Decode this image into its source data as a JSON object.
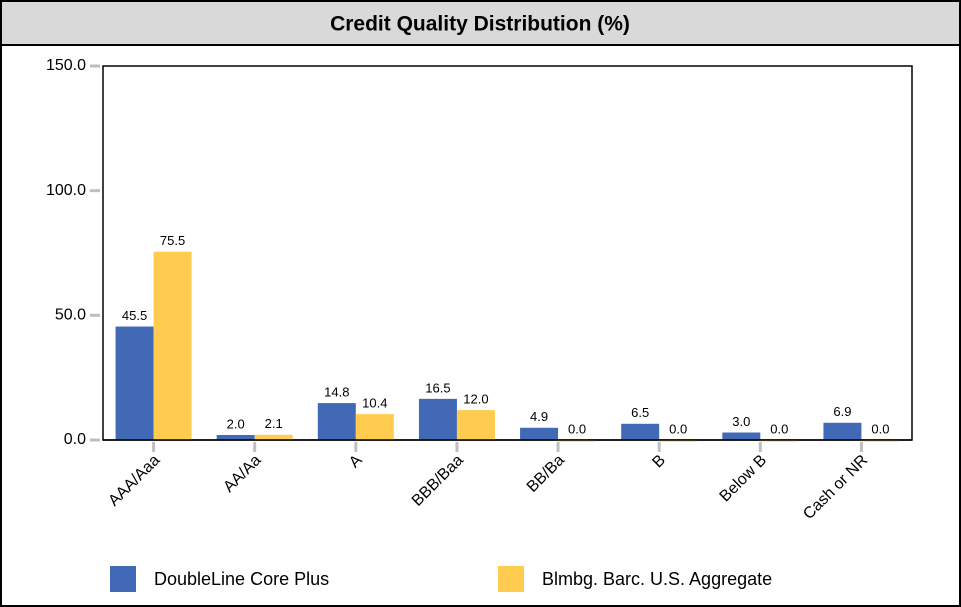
{
  "chart_data": {
    "type": "bar",
    "title": "Credit Quality Distribution (%)",
    "categories": [
      "AAA/Aaa",
      "AA/Aa",
      "A",
      "BBB/Baa",
      "BB/Ba",
      "B",
      "Below B",
      "Cash or NR"
    ],
    "series": [
      {
        "name": "DoubleLine Core Plus",
        "color": "#4269b5",
        "values": [
          45.5,
          2.0,
          14.8,
          16.5,
          4.9,
          6.5,
          3.0,
          6.9
        ],
        "value_labels": [
          "45.5",
          "2.0",
          "14.8",
          "16.5",
          "4.9",
          "6.5",
          "3.0",
          "6.9"
        ]
      },
      {
        "name": "Blmbg. Barc. U.S. Aggregate",
        "color": "#ffcc4f",
        "values": [
          75.5,
          2.1,
          10.4,
          12.0,
          0.0,
          0.0,
          0.0,
          0.0
        ],
        "value_labels": [
          "75.5",
          "2.1",
          "10.4",
          "12.0",
          "0.0",
          "0.0",
          "0.0",
          "0.0"
        ]
      }
    ],
    "ylim": [
      0,
      150
    ],
    "yticks": [
      {
        "value": 0,
        "label": "0.0"
      },
      {
        "value": 50,
        "label": "50.0"
      },
      {
        "value": 100,
        "label": "100.0"
      },
      {
        "value": 150,
        "label": "150.0"
      }
    ],
    "legend": "bottom"
  }
}
